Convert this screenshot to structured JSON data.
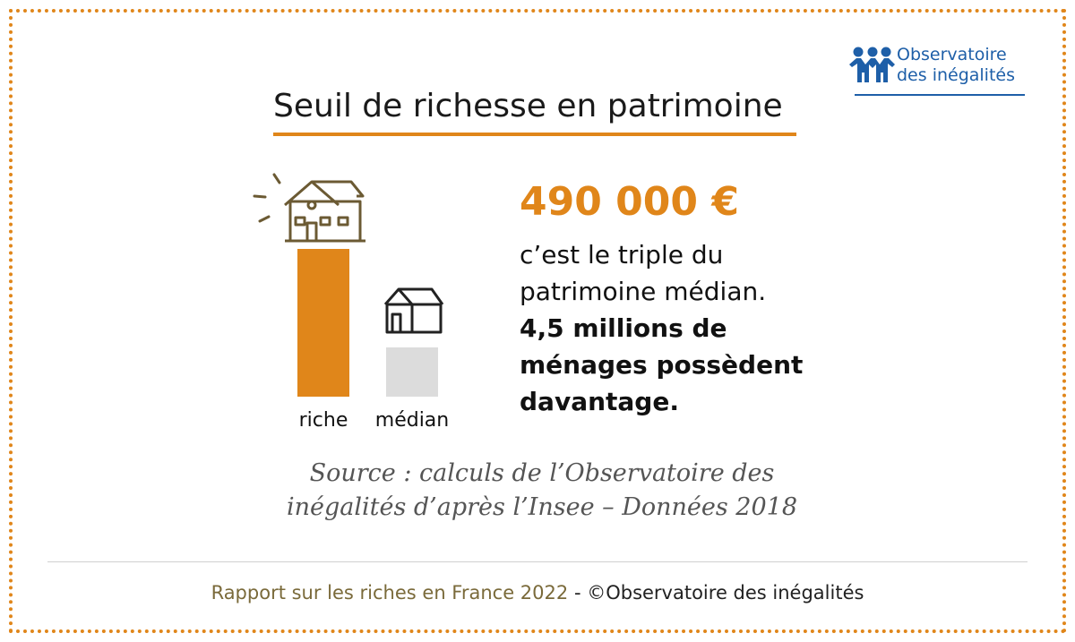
{
  "brand": {
    "name_line1": "Observatoire",
    "name_line2": "des inégalités",
    "color": "#1e5fa8"
  },
  "title": "Seuil de richesse en patrimoine",
  "accent_color": "#e0861a",
  "headline": {
    "value": "490 000 €",
    "text": "c’est le triple du patrimoine médian.",
    "bold_text": "4,5 millions de ménages possèdent davantage."
  },
  "chart_data": {
    "type": "bar",
    "categories": [
      "riche",
      "médian"
    ],
    "values": [
      3,
      1
    ],
    "colors": [
      "#e0861a",
      "#dcdcdc"
    ],
    "icons": [
      "house-large-icon",
      "house-small-icon"
    ],
    "title": "",
    "xlabel": "",
    "ylabel": ""
  },
  "source": "Source : calculs de l’Observatoire des inégalités d’après l’Insee – Données 2018",
  "footer": {
    "report": "Rapport sur les riches en France 2022",
    "separator": " - ",
    "copyright": "©Observatoire des inégalités"
  }
}
